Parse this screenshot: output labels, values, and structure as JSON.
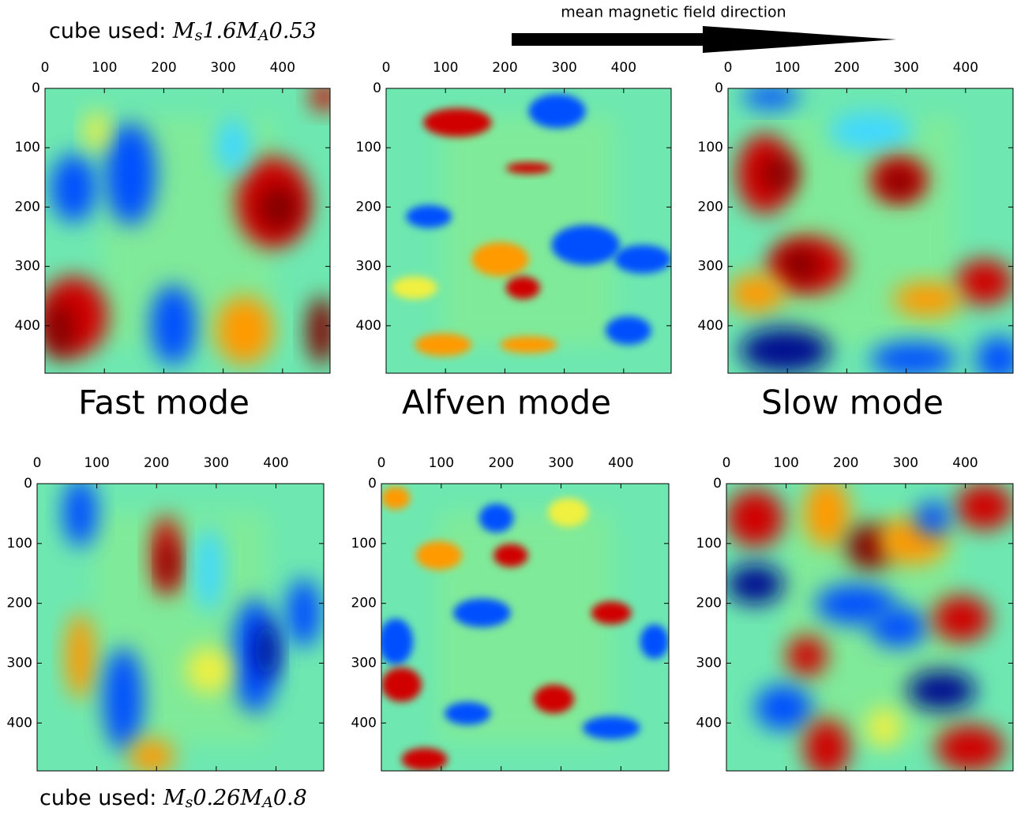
{
  "annotations": {
    "arrow_label": "mean magnetic field direction",
    "cube_top": [
      "cube used: ",
      "M",
      "s",
      "1.6",
      "M",
      "A",
      "0.53"
    ],
    "cube_bottom": [
      "cube used: ",
      "M",
      "s",
      "0.26",
      "M",
      "A",
      "0.8"
    ]
  },
  "chart_data": [
    {
      "type": "heatmap",
      "title": "Fast mode",
      "xlim": [
        0,
        480
      ],
      "ylim": [
        0,
        480
      ],
      "invert_y": true,
      "xticks": [
        0,
        100,
        200,
        300,
        400
      ],
      "yticks": [
        0,
        100,
        200,
        300,
        400
      ]
    },
    {
      "type": "heatmap",
      "title": "Alfven mode",
      "xlim": [
        0,
        480
      ],
      "ylim": [
        0,
        480
      ],
      "invert_y": true,
      "xticks": [
        0,
        100,
        200,
        300,
        400
      ],
      "yticks": [
        0,
        100,
        200,
        300,
        400
      ]
    },
    {
      "type": "heatmap",
      "title": "Slow mode",
      "xlim": [
        0,
        480
      ],
      "ylim": [
        0,
        480
      ],
      "invert_y": true,
      "xticks": [
        0,
        100,
        200,
        300,
        400
      ],
      "yticks": [
        0,
        100,
        200,
        300,
        400
      ]
    },
    {
      "type": "heatmap",
      "xlim": [
        0,
        480
      ],
      "ylim": [
        0,
        480
      ],
      "invert_y": true,
      "xticks": [
        0,
        100,
        200,
        300,
        400
      ],
      "yticks": [
        0,
        100,
        200,
        300,
        400
      ]
    },
    {
      "type": "heatmap",
      "xlim": [
        0,
        480
      ],
      "ylim": [
        0,
        480
      ],
      "invert_y": true,
      "xticks": [
        0,
        100,
        200,
        300,
        400
      ],
      "yticks": [
        0,
        100,
        200,
        300,
        400
      ]
    },
    {
      "type": "heatmap",
      "xlim": [
        0,
        480
      ],
      "ylim": [
        0,
        480
      ],
      "invert_y": true,
      "xticks": [
        0,
        100,
        200,
        300,
        400
      ],
      "yticks": [
        0,
        100,
        200,
        300,
        400
      ]
    }
  ]
}
